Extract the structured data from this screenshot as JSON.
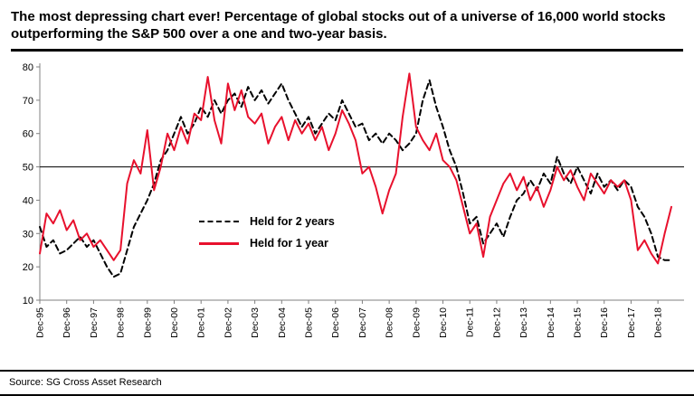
{
  "header": {
    "title": "The most depressing chart ever! Percentage of global stocks out of a universe of 16,000 world stocks outperforming the S&P 500 over a one and two-year basis."
  },
  "footer": {
    "source": "Source: SG Cross Asset Research"
  },
  "colors": {
    "series_1yr": "#e8112d",
    "series_2yr": "#000000",
    "axis": "#808080",
    "ref_line": "#1a1a1a"
  },
  "chart_data": {
    "type": "line",
    "title": "",
    "xlabel": "",
    "ylabel": "",
    "ylim": [
      10,
      80
    ],
    "ytick_step": 10,
    "xtick_every": 4,
    "ref_line": 50,
    "grid": "off",
    "legend_position": "inside-center-left",
    "x": [
      "Dec-95",
      "Mar-96",
      "Jun-96",
      "Sep-96",
      "Dec-96",
      "Mar-97",
      "Jun-97",
      "Sep-97",
      "Dec-97",
      "Mar-98",
      "Jun-98",
      "Sep-98",
      "Dec-98",
      "Mar-99",
      "Jun-99",
      "Sep-99",
      "Dec-99",
      "Mar-00",
      "Jun-00",
      "Sep-00",
      "Dec-00",
      "Mar-01",
      "Jun-01",
      "Sep-01",
      "Dec-01",
      "Mar-02",
      "Jun-02",
      "Sep-02",
      "Dec-02",
      "Mar-03",
      "Jun-03",
      "Sep-03",
      "Dec-03",
      "Mar-04",
      "Jun-04",
      "Sep-04",
      "Dec-04",
      "Mar-05",
      "Jun-05",
      "Sep-05",
      "Dec-05",
      "Mar-06",
      "Jun-06",
      "Sep-06",
      "Dec-06",
      "Mar-07",
      "Jun-07",
      "Sep-07",
      "Dec-07",
      "Mar-08",
      "Jun-08",
      "Sep-08",
      "Dec-08",
      "Mar-09",
      "Jun-09",
      "Sep-09",
      "Dec-09",
      "Mar-10",
      "Jun-10",
      "Sep-10",
      "Dec-10",
      "Mar-11",
      "Jun-11",
      "Sep-11",
      "Dec-11",
      "Mar-12",
      "Jun-12",
      "Sep-12",
      "Dec-12",
      "Mar-13",
      "Jun-13",
      "Sep-13",
      "Dec-13",
      "Mar-14",
      "Jun-14",
      "Sep-14",
      "Dec-14",
      "Mar-15",
      "Jun-15",
      "Sep-15",
      "Dec-15",
      "Mar-16",
      "Jun-16",
      "Sep-16",
      "Dec-16",
      "Mar-17",
      "Jun-17",
      "Sep-17",
      "Dec-17",
      "Mar-18",
      "Jun-18",
      "Sep-18",
      "Dec-18",
      "Mar-19",
      "Jun-19"
    ],
    "series": [
      {
        "name": "Held for 2 years",
        "color": "#000000",
        "style": "dashed",
        "values": [
          32,
          26,
          28,
          24,
          25,
          27,
          29,
          26,
          28,
          24,
          20,
          17,
          18,
          25,
          32,
          36,
          40,
          45,
          52,
          55,
          60,
          65,
          60,
          63,
          68,
          65,
          70,
          66,
          70,
          72,
          68,
          74,
          70,
          73,
          69,
          72,
          75,
          70,
          66,
          62,
          65,
          60,
          63,
          66,
          64,
          70,
          66,
          62,
          63,
          58,
          60,
          57,
          60,
          58,
          55,
          57,
          60,
          70,
          76,
          68,
          62,
          55,
          50,
          42,
          33,
          35,
          27,
          30,
          33,
          29,
          35,
          40,
          42,
          46,
          43,
          48,
          45,
          53,
          48,
          45,
          50,
          46,
          42,
          48,
          44,
          46,
          43,
          46,
          44,
          38,
          35,
          30,
          23,
          22,
          22
        ]
      },
      {
        "name": "Held for 1 year",
        "color": "#e8112d",
        "style": "solid",
        "values": [
          24,
          36,
          33,
          37,
          31,
          34,
          28,
          30,
          26,
          28,
          25,
          22,
          25,
          45,
          52,
          48,
          61,
          43,
          50,
          60,
          55,
          62,
          57,
          66,
          64,
          77,
          64,
          57,
          75,
          67,
          73,
          65,
          63,
          66,
          57,
          62,
          65,
          58,
          64,
          60,
          63,
          58,
          62,
          55,
          60,
          67,
          63,
          58,
          48,
          50,
          44,
          36,
          43,
          48,
          65,
          78,
          62,
          58,
          55,
          60,
          52,
          50,
          46,
          38,
          30,
          33,
          23,
          35,
          40,
          45,
          48,
          43,
          47,
          40,
          44,
          38,
          43,
          50,
          46,
          49,
          44,
          40,
          48,
          45,
          42,
          46,
          44,
          46,
          40,
          25,
          28,
          24,
          21,
          30,
          38
        ]
      }
    ]
  }
}
